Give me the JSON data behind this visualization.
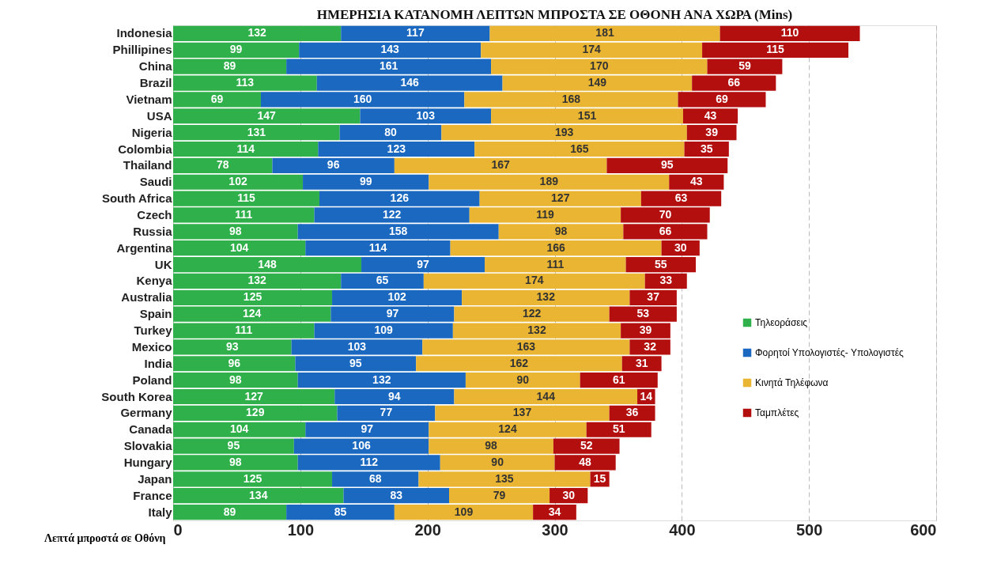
{
  "chart_data": {
    "type": "bar",
    "orientation": "horizontal",
    "stacked": true,
    "title": "ΗΜΕΡΗΣΙΑ ΚΑΤΑΝΟΜΗ  ΛΕΠΤΩΝ ΜΠΡΟΣΤΑ ΣΕ ΟΘΟΝΗ ΑΝΑ ΧΩΡΑ (Mins)",
    "xlabel": "Λεπτά μπροστά σε Οθόνη",
    "categories": [
      "Indonesia",
      "Phillipines",
      "China",
      "Brazil",
      "Vietnam",
      "USA",
      "Nigeria",
      "Colombia",
      "Thailand",
      "Saudi",
      "South Africa",
      "Czech",
      "Russia",
      "Argentina",
      "UK",
      "Kenya",
      "Australia",
      "Spain",
      "Turkey",
      "Mexico",
      "India",
      "Poland",
      "South Korea",
      "Germany",
      "Canada",
      "Slovakia",
      "Hungary",
      "Japan",
      "France",
      "Italy"
    ],
    "series": [
      {
        "name": "Τηλεοράσεις",
        "color": "#2fb04a",
        "values": [
          132,
          99,
          89,
          113,
          69,
          147,
          131,
          114,
          78,
          102,
          115,
          111,
          98,
          104,
          148,
          132,
          125,
          124,
          111,
          93,
          96,
          98,
          127,
          129,
          104,
          95,
          98,
          125,
          134,
          89
        ]
      },
      {
        "name": "Φορητοί Υπολογιστές- Υπολογιστές",
        "color": "#1a68c0",
        "values": [
          117,
          143,
          161,
          146,
          160,
          103,
          80,
          123,
          96,
          99,
          126,
          122,
          158,
          114,
          97,
          65,
          102,
          97,
          109,
          103,
          95,
          132,
          94,
          77,
          97,
          106,
          112,
          68,
          83,
          85
        ]
      },
      {
        "name": "Κινητά Τηλέφωνα",
        "color": "#e9b532",
        "values": [
          181,
          174,
          170,
          149,
          168,
          151,
          193,
          165,
          167,
          189,
          127,
          119,
          98,
          166,
          111,
          174,
          132,
          122,
          132,
          163,
          162,
          90,
          144,
          137,
          124,
          98,
          90,
          135,
          79,
          109
        ]
      },
      {
        "name": "Ταμπλέτες",
        "color": "#b40f0f",
        "values": [
          110,
          115,
          59,
          66,
          69,
          43,
          39,
          35,
          95,
          43,
          63,
          70,
          66,
          30,
          55,
          33,
          37,
          53,
          39,
          32,
          31,
          61,
          14,
          36,
          51,
          52,
          48,
          15,
          30,
          34
        ]
      }
    ],
    "xlim": [
      0,
      600
    ],
    "xticks": [
      0,
      100,
      200,
      300,
      400,
      500,
      600
    ],
    "grid": "x",
    "legend": "right",
    "data_labels": true
  }
}
